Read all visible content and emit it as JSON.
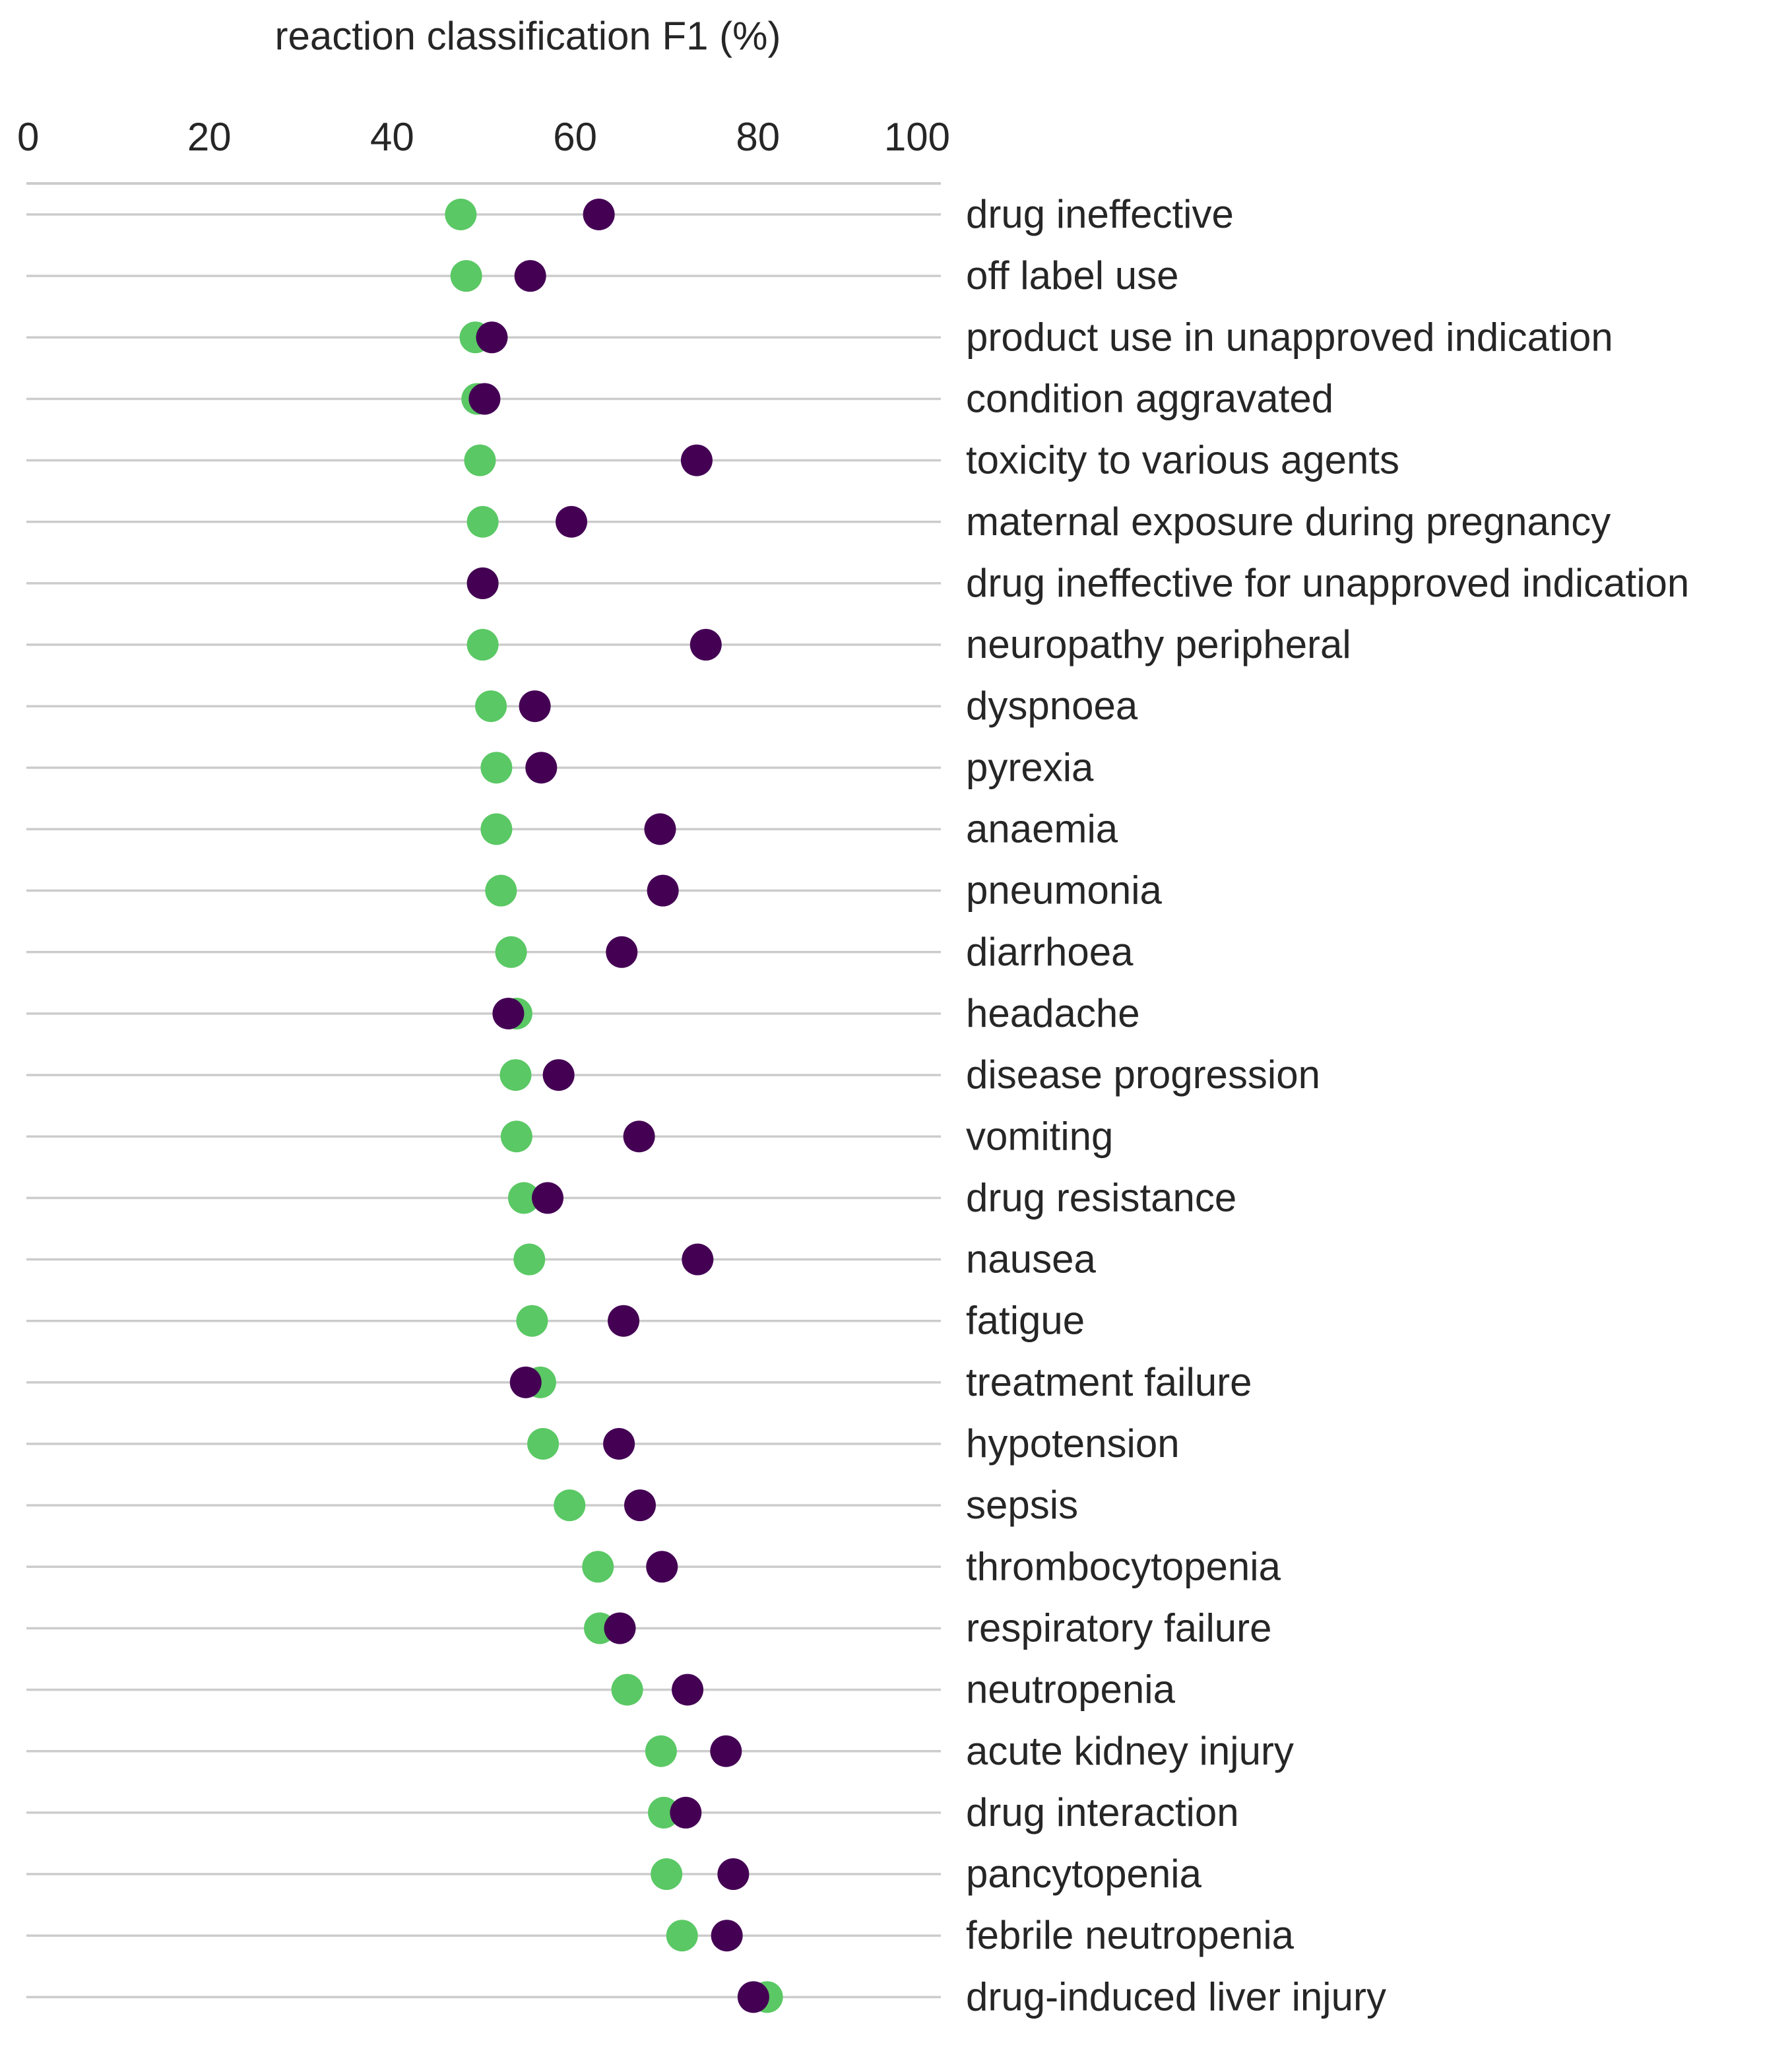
{
  "chart_data": {
    "type": "scatter",
    "orientation": "horizontal-dot",
    "xlabel": "reaction classification F1 (%)",
    "xlim": [
      0,
      100
    ],
    "xticks": [
      0,
      20,
      40,
      60,
      80,
      100
    ],
    "xaxis_position": "top",
    "grid": "horizontal lines per category",
    "legend": "none",
    "categories": [
      "drug ineffective",
      "off label use",
      "product use in unapproved indication",
      "condition aggravated",
      "toxicity to various agents",
      "maternal exposure during pregnancy",
      "drug ineffective for unapproved indication",
      "neuropathy peripheral",
      "dyspnoea",
      "pyrexia",
      "anaemia",
      "pneumonia",
      "diarrhoea",
      "headache",
      "disease progression",
      "vomiting",
      "drug resistance",
      "nausea",
      "fatigue",
      "treatment failure",
      "hypotension",
      "sepsis",
      "thrombocytopenia",
      "respiratory failure",
      "neutropenia",
      "acute kidney injury",
      "drug interaction",
      "pancytopenia",
      "febrile neutropenia",
      "drug-induced liver injury"
    ],
    "series": [
      {
        "color": "#5ac864",
        "values": [
          47.5,
          48.1,
          49.1,
          49.3,
          49.6,
          49.9,
          49.9,
          49.9,
          50.8,
          51.4,
          51.4,
          51.9,
          53.0,
          53.6,
          53.5,
          53.6,
          54.4,
          55.0,
          55.3,
          56.2,
          56.5,
          59.4,
          62.5,
          62.7,
          65.7,
          69.4,
          69.7,
          70.0,
          71.7,
          81.0
        ]
      },
      {
        "color": "#440154",
        "values": [
          62.6,
          55.1,
          50.9,
          50.1,
          73.3,
          59.6,
          49.9,
          74.3,
          55.6,
          56.3,
          69.3,
          69.6,
          65.1,
          52.7,
          58.2,
          67.0,
          57.0,
          73.4,
          65.3,
          54.6,
          64.8,
          67.1,
          69.5,
          64.9,
          72.3,
          76.5,
          72.1,
          77.3,
          76.6,
          79.5
        ]
      }
    ]
  }
}
